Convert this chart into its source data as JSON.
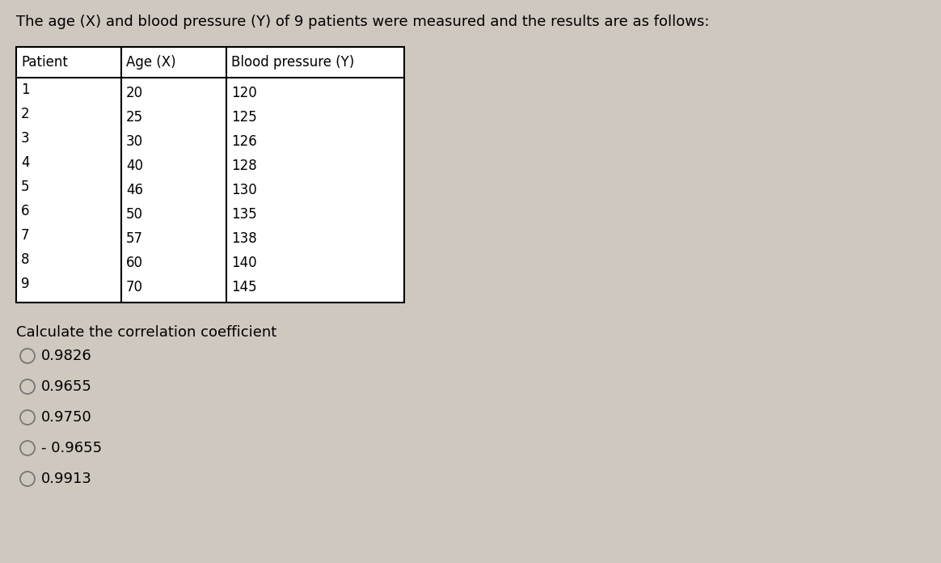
{
  "title": "The age (X) and blood pressure (Y) of 9 patients were measured and the results are as follows:",
  "background_color": "#cec8be",
  "table_bg": "#e8e4dc",
  "table_header": [
    "Patient",
    "Age (X)",
    "Blood pressure (Y)"
  ],
  "patients": [
    1,
    2,
    3,
    4,
    5,
    6,
    7,
    8,
    9
  ],
  "ages": [
    20,
    25,
    30,
    40,
    46,
    50,
    57,
    60,
    70
  ],
  "blood_pressures": [
    120,
    125,
    126,
    128,
    130,
    135,
    138,
    140,
    145
  ],
  "question": "Calculate the correlation coefficient",
  "options": [
    "0.9826",
    "0.9655",
    "0.9750",
    "- 0.9655",
    "0.9913"
  ],
  "title_fontsize": 13,
  "table_fontsize": 12,
  "question_fontsize": 13,
  "option_fontsize": 13
}
